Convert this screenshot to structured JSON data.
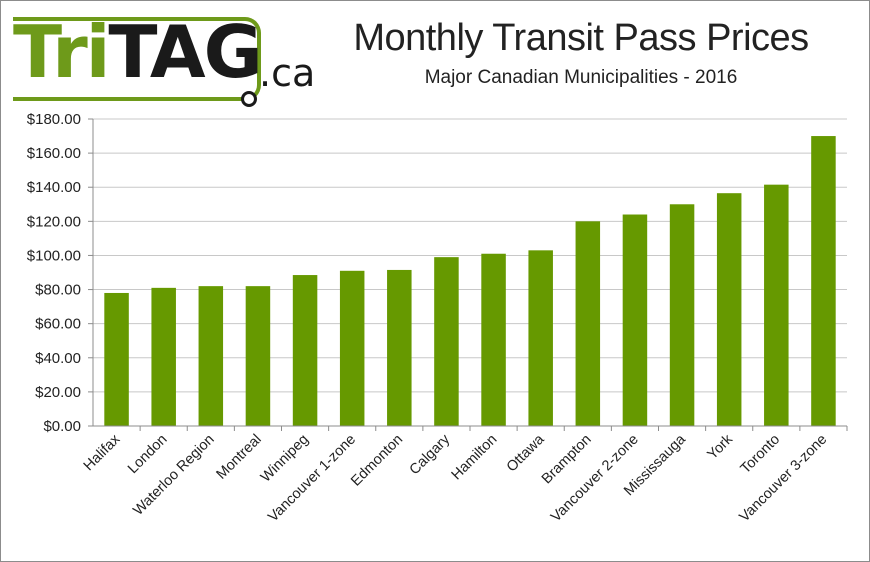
{
  "logo": {
    "tri": "Tri",
    "tag": "TAG",
    "domain": ".ca"
  },
  "chart_data": {
    "type": "bar",
    "title": "Monthly Transit Pass Prices",
    "subtitle": "Major Canadian Municipalities - 2016",
    "xlabel": "",
    "ylabel": "",
    "ylim": [
      0,
      180
    ],
    "yticks": [
      0,
      20,
      40,
      60,
      80,
      100,
      120,
      140,
      160,
      180
    ],
    "ytick_labels": [
      "$0.00",
      "$20.00",
      "$40.00",
      "$60.00",
      "$80.00",
      "$100.00",
      "$120.00",
      "$140.00",
      "$160.00",
      "$180.00"
    ],
    "grid": true,
    "legend": "none",
    "bar_color": "#669900",
    "categories": [
      "Halifax",
      "London",
      "Waterloo Region",
      "Montreal",
      "Winnipeg",
      "Vancouver 1-zone",
      "Edmonton",
      "Calgary",
      "Hamilton",
      "Ottawa",
      "Brampton",
      "Vancouver 2-zone",
      "Mississauga",
      "York",
      "Toronto",
      "Vancouver 3-zone"
    ],
    "values": [
      78,
      81,
      82,
      82,
      88.5,
      91,
      91.5,
      99,
      101,
      103,
      120,
      124,
      130,
      136.5,
      141.5,
      170
    ]
  }
}
